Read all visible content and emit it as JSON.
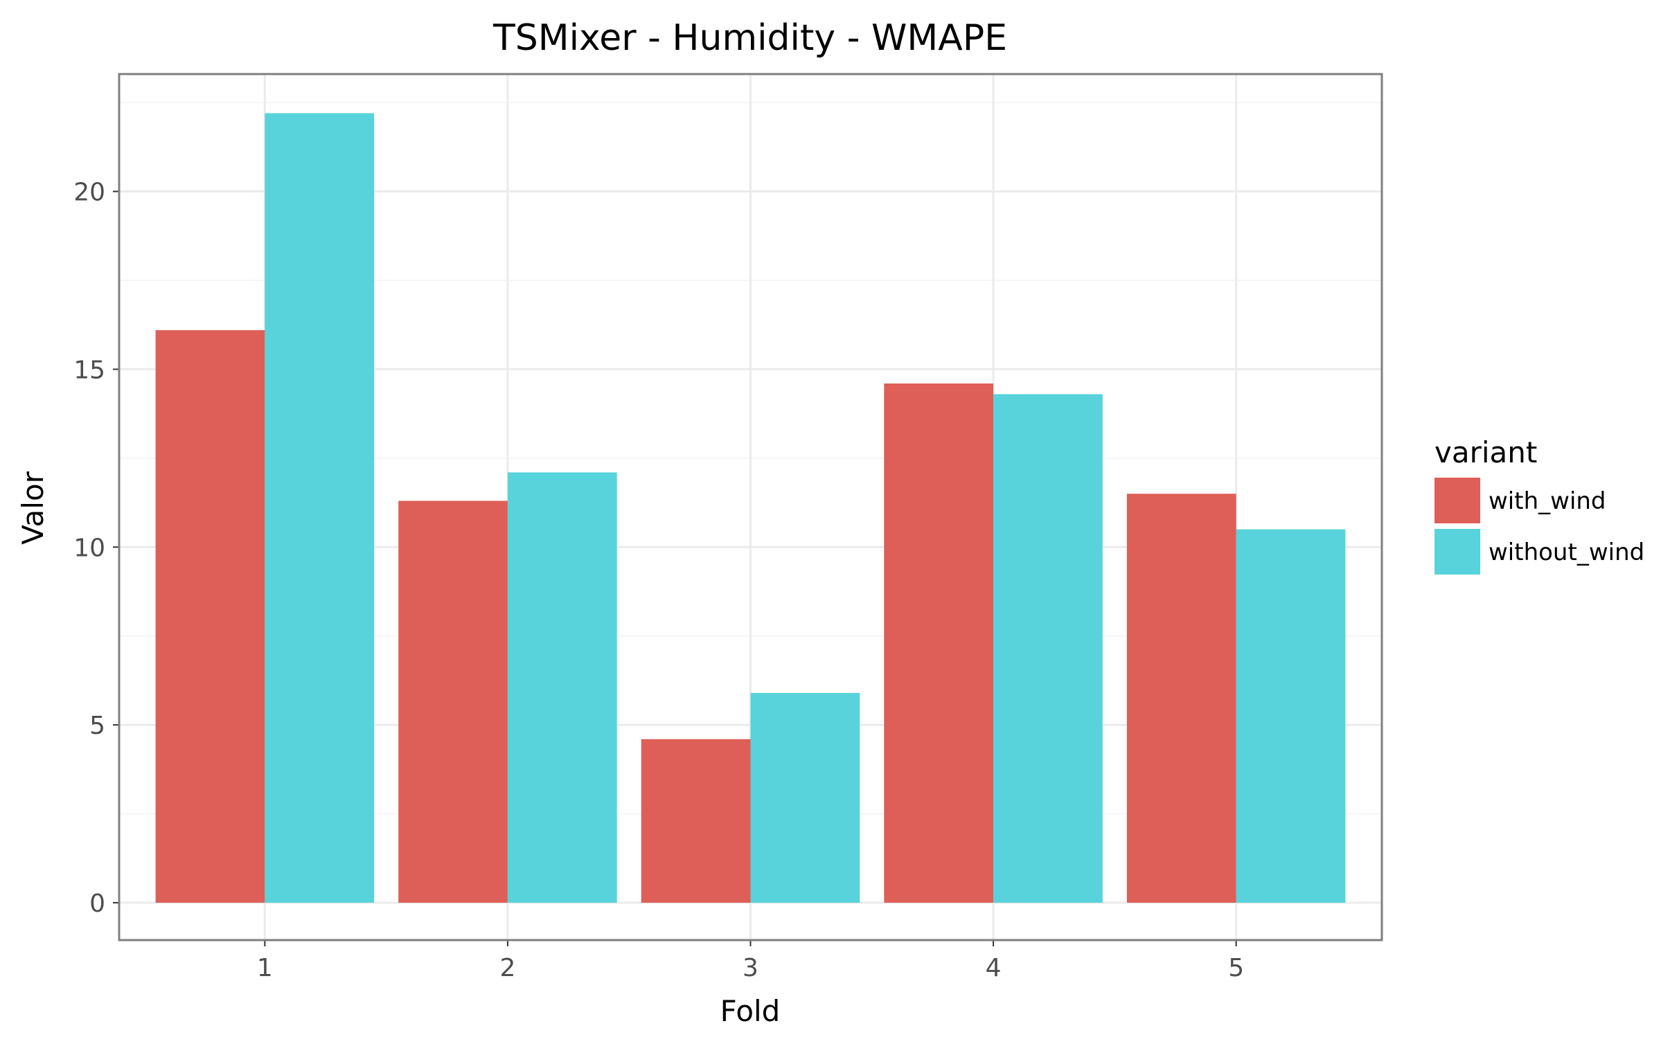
{
  "chart_data": {
    "type": "bar",
    "title": "TSMixer - Humidity - WMAPE",
    "xlabel": "Fold",
    "ylabel": "Valor",
    "categories": [
      "1",
      "2",
      "3",
      "4",
      "5"
    ],
    "series": [
      {
        "name": "with_wind",
        "color": "#dd5f57",
        "values": [
          16.1,
          11.3,
          4.6,
          14.6,
          11.5
        ]
      },
      {
        "name": "without_wind",
        "color": "#58d3db",
        "values": [
          22.2,
          12.1,
          5.9,
          14.3,
          10.5
        ]
      }
    ],
    "ylim": [
      -1.05,
      23.3
    ],
    "yticks": [
      0,
      5,
      10,
      15,
      20
    ],
    "grid": true,
    "legend": {
      "title": "variant",
      "position": "right"
    }
  }
}
